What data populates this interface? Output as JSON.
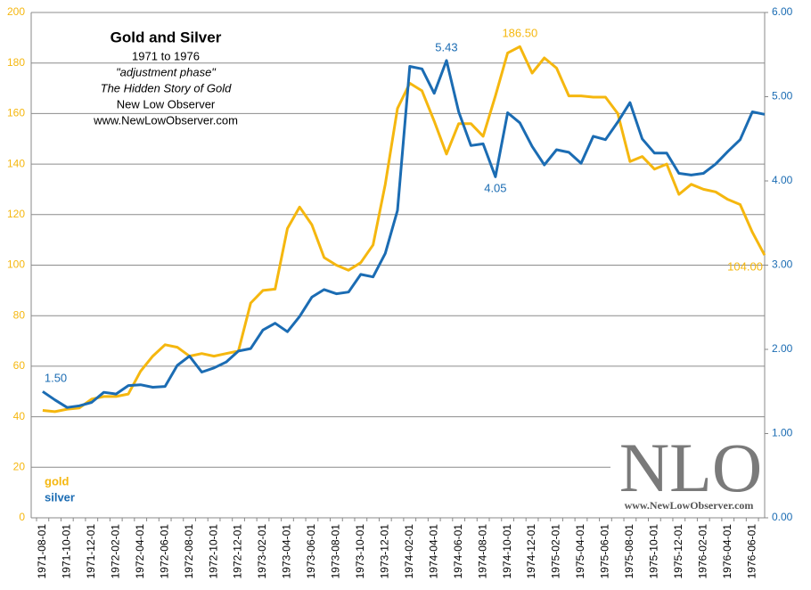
{
  "chart_data": {
    "type": "line",
    "title": "Gold and Silver",
    "subtitle_lines": [
      "1971  to 1976",
      "\"adjustment phase\"",
      "The Hidden Story of Gold",
      "New Low Observer",
      "www.NewLowObserver.com"
    ],
    "watermark": {
      "logo": "NLO",
      "url": "www.NewLowObserver.com"
    },
    "categories": [
      "1971-08-01",
      null,
      "1971-10-01",
      null,
      "1971-12-01",
      null,
      "1972-02-01",
      null,
      "1972-04-01",
      null,
      "1972-06-01",
      null,
      "1972-08-01",
      null,
      "1972-10-01",
      null,
      "1972-12-01",
      null,
      "1973-02-01",
      null,
      "1973-04-01",
      null,
      "1973-06-01",
      null,
      "1973-08-01",
      null,
      "1973-10-01",
      null,
      "1973-12-01",
      null,
      "1974-02-01",
      null,
      "1974-04-01",
      null,
      "1974-06-01",
      null,
      "1974-08-01",
      null,
      "1974-10-01",
      null,
      "1974-12-01",
      null,
      "1975-02-01",
      null,
      "1975-04-01",
      null,
      "1975-06-01",
      null,
      "1975-08-01",
      null,
      "1975-10-01",
      null,
      "1975-12-01",
      null,
      "1976-02-01",
      null,
      "1976-04-01",
      null,
      "1976-06-01",
      null
    ],
    "series": [
      {
        "name": "gold",
        "color": "#f5b70f",
        "axis": "y",
        "values": [
          42.5,
          42,
          43,
          43.5,
          47,
          48,
          48,
          49,
          58,
          64,
          68.5,
          67.5,
          64,
          65,
          64,
          65,
          66,
          85,
          90,
          90.5,
          114.5,
          123,
          116,
          103,
          100,
          98,
          101,
          108,
          132,
          162,
          172,
          169,
          157,
          144,
          156,
          156,
          151,
          167,
          184,
          186.5,
          176,
          182,
          178,
          167,
          167,
          166.5,
          166.5,
          160,
          141,
          143,
          138,
          140,
          128,
          132,
          130,
          129,
          126,
          124,
          113,
          104
        ],
        "value_labels": [
          null,
          null,
          null,
          null,
          null,
          null,
          null,
          null,
          null,
          null,
          null,
          null,
          null,
          null,
          null,
          null,
          null,
          null,
          null,
          null,
          null,
          null,
          null,
          null,
          null,
          null,
          null,
          null,
          null,
          null,
          null,
          null,
          null,
          null,
          null,
          null,
          null,
          null,
          null,
          "186.50",
          null,
          null,
          null,
          null,
          null,
          null,
          null,
          null,
          null,
          null,
          null,
          null,
          null,
          null,
          null,
          null,
          null,
          null,
          null,
          "104.00"
        ]
      },
      {
        "name": "silver",
        "color": "#1b6cb3",
        "axis": "y2",
        "values": [
          1.5,
          1.4,
          1.31,
          1.33,
          1.37,
          1.49,
          1.47,
          1.57,
          1.58,
          1.55,
          1.56,
          1.81,
          1.92,
          1.73,
          1.78,
          1.85,
          1.98,
          2.01,
          2.23,
          2.31,
          2.21,
          2.39,
          2.62,
          2.71,
          2.66,
          2.68,
          2.89,
          2.86,
          3.14,
          3.65,
          5.36,
          5.33,
          5.04,
          5.43,
          4.82,
          4.42,
          4.44,
          4.05,
          4.81,
          4.69,
          4.41,
          4.19,
          4.37,
          4.34,
          4.21,
          4.53,
          4.49,
          4.7,
          4.93,
          4.5,
          4.33,
          4.33,
          4.09,
          4.07,
          4.09,
          4.2,
          4.35,
          4.49,
          4.82,
          4.79
        ],
        "value_labels": [
          "1.50",
          null,
          null,
          null,
          null,
          null,
          null,
          null,
          null,
          null,
          null,
          null,
          null,
          null,
          null,
          null,
          null,
          null,
          null,
          null,
          null,
          null,
          null,
          null,
          null,
          null,
          null,
          null,
          null,
          null,
          null,
          null,
          null,
          "5.43",
          null,
          null,
          null,
          "4.05",
          null,
          null,
          null,
          null,
          null,
          null,
          null,
          null,
          null,
          null,
          null,
          null,
          null,
          null,
          null,
          null,
          null,
          null,
          null,
          null,
          null,
          null
        ]
      }
    ],
    "ylim": [
      0,
      200
    ],
    "yticks": [
      0,
      20,
      40,
      60,
      80,
      100,
      120,
      140,
      160,
      180,
      200
    ],
    "y2lim": [
      0,
      6
    ],
    "y2ticks": [
      {
        "value": 0,
        "label": "0.00"
      },
      {
        "value": 1,
        "label": "1.00"
      },
      {
        "value": 2,
        "label": "2.00"
      },
      {
        "value": 3,
        "label": "3.00"
      },
      {
        "value": 4,
        "label": "4.00"
      },
      {
        "value": 5,
        "label": "5.00"
      },
      {
        "value": 6,
        "label": "6.00"
      }
    ],
    "grid": true,
    "legend": "bottom-left"
  }
}
